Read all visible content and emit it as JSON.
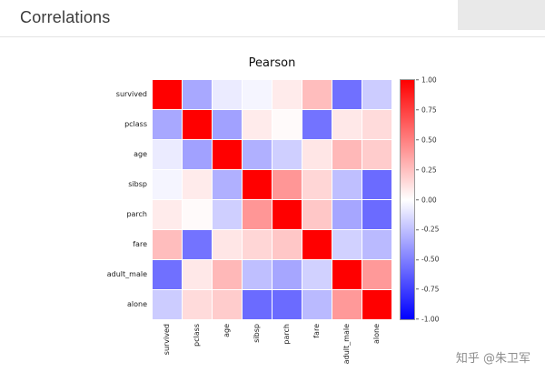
{
  "header": {
    "title": "Correlations"
  },
  "watermark": "知乎 @朱卫军",
  "chart_data": {
    "type": "heatmap",
    "title": "Pearson",
    "labels": [
      "survived",
      "pclass",
      "age",
      "sibsp",
      "parch",
      "fare",
      "adult_male",
      "alone"
    ],
    "matrix": [
      [
        1.0,
        -0.34,
        -0.08,
        -0.04,
        0.08,
        0.26,
        -0.56,
        -0.2
      ],
      [
        -0.34,
        1.0,
        -0.37,
        0.08,
        0.02,
        -0.55,
        0.09,
        0.14
      ],
      [
        -0.08,
        -0.37,
        1.0,
        -0.31,
        -0.19,
        0.1,
        0.28,
        0.2
      ],
      [
        -0.04,
        0.08,
        -0.31,
        1.0,
        0.41,
        0.16,
        -0.25,
        -0.58
      ],
      [
        0.08,
        0.02,
        -0.19,
        0.41,
        1.0,
        0.22,
        -0.35,
        -0.58
      ],
      [
        0.26,
        -0.55,
        0.1,
        0.16,
        0.22,
        1.0,
        -0.18,
        -0.27
      ],
      [
        -0.56,
        0.09,
        0.28,
        -0.25,
        -0.35,
        -0.18,
        1.0,
        0.4
      ],
      [
        -0.2,
        0.14,
        0.2,
        -0.58,
        -0.58,
        -0.27,
        0.4,
        1.0
      ]
    ],
    "colormap": "bwr",
    "vmin": -1.0,
    "vmax": 1.0,
    "colorbar_ticks": [
      "1.00",
      "0.75",
      "0.50",
      "0.25",
      "0.00",
      "-0.25",
      "-0.50",
      "-0.75",
      "-1.00"
    ],
    "legend_position": "right",
    "grid": false
  }
}
